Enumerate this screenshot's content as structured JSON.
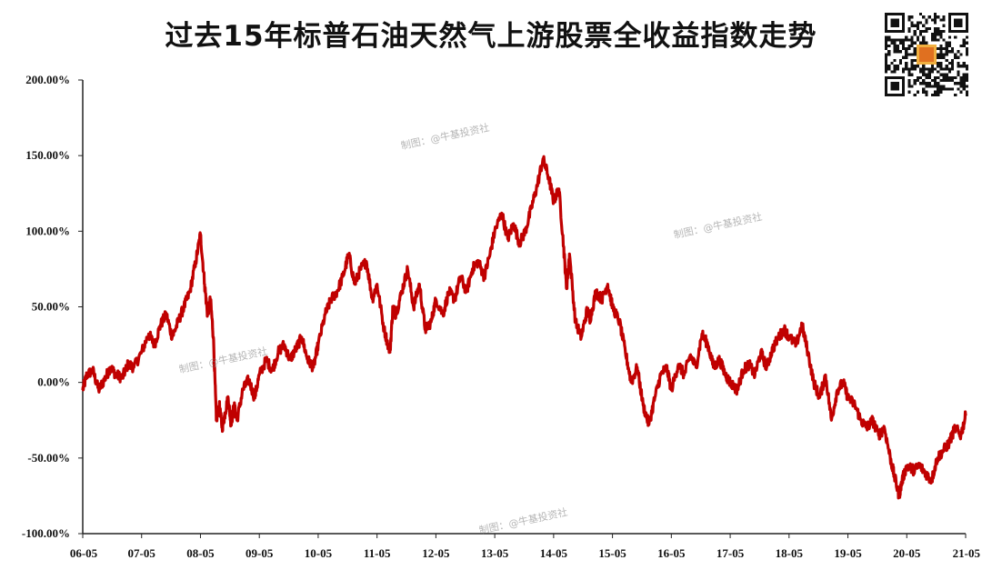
{
  "title": "过去15年标普石油天然气上游股票全收益指数走势",
  "watermark_text": "制图：@牛基投资社",
  "colors": {
    "series": "#c00000",
    "axis": "#222222",
    "text": "#111111"
  },
  "qr_icon": "qr-code-icon",
  "chart_data": {
    "type": "line",
    "title": "过去15年标普石油天然气上游股票全收益指数走势",
    "xlabel": "",
    "ylabel": "",
    "ylim": [
      -1.0,
      2.0
    ],
    "y_ticks": [
      2.0,
      1.5,
      1.0,
      0.5,
      0.0,
      -0.5,
      -1.0
    ],
    "y_tick_labels": [
      "200.00%",
      "150.00%",
      "100.00%",
      "50.00%",
      "0.00%",
      "-50.00%",
      "-100.00%"
    ],
    "x_tick_labels": [
      "06-05",
      "07-05",
      "08-05",
      "09-05",
      "10-05",
      "11-05",
      "12-05",
      "13-05",
      "14-05",
      "15-05",
      "16-05",
      "17-05",
      "18-05",
      "19-05",
      "20-05",
      "21-05"
    ],
    "xlim": [
      2006.33,
      2021.33
    ],
    "grid": false,
    "legend": "none",
    "series": [
      {
        "x": [
          2006.33,
          2006.4,
          2006.5,
          2006.6,
          2006.7,
          2006.8,
          2006.9,
          2007.0,
          2007.1,
          2007.2,
          2007.33,
          2007.45,
          2007.55,
          2007.65,
          2007.75,
          2007.85,
          2007.95,
          2008.05,
          2008.15,
          2008.25,
          2008.33,
          2008.4,
          2008.45,
          2008.5,
          2008.55,
          2008.6,
          2008.65,
          2008.7,
          2008.75,
          2008.8,
          2008.85,
          2008.9,
          2008.95,
          2009.05,
          2009.15,
          2009.25,
          2009.33,
          2009.45,
          2009.55,
          2009.65,
          2009.75,
          2009.85,
          2009.95,
          2010.05,
          2010.15,
          2010.25,
          2010.33,
          2010.45,
          2010.55,
          2010.65,
          2010.75,
          2010.85,
          2010.95,
          2011.05,
          2011.15,
          2011.25,
          2011.33,
          2011.45,
          2011.55,
          2011.6,
          2011.65,
          2011.75,
          2011.85,
          2011.95,
          2012.05,
          2012.15,
          2012.25,
          2012.33,
          2012.45,
          2012.55,
          2012.65,
          2012.75,
          2012.85,
          2012.95,
          2013.05,
          2013.15,
          2013.25,
          2013.33,
          2013.45,
          2013.55,
          2013.65,
          2013.75,
          2013.85,
          2013.95,
          2014.05,
          2014.15,
          2014.25,
          2014.33,
          2014.42,
          2014.5,
          2014.55,
          2014.6,
          2014.7,
          2014.8,
          2014.9,
          2014.95,
          2015.05,
          2015.15,
          2015.25,
          2015.33,
          2015.45,
          2015.55,
          2015.65,
          2015.75,
          2015.85,
          2015.95,
          2016.05,
          2016.15,
          2016.25,
          2016.33,
          2016.45,
          2016.55,
          2016.65,
          2016.75,
          2016.85,
          2016.95,
          2017.05,
          2017.15,
          2017.25,
          2017.33,
          2017.45,
          2017.55,
          2017.65,
          2017.75,
          2017.85,
          2017.95,
          2018.05,
          2018.15,
          2018.25,
          2018.33,
          2018.45,
          2018.55,
          2018.65,
          2018.75,
          2018.85,
          2018.95,
          2019.05,
          2019.15,
          2019.25,
          2019.33,
          2019.45,
          2019.55,
          2019.65,
          2019.75,
          2019.85,
          2019.95,
          2020.05,
          2020.12,
          2020.2,
          2020.25,
          2020.33,
          2020.45,
          2020.55,
          2020.65,
          2020.75,
          2020.85,
          2020.95,
          2021.05,
          2021.15,
          2021.25,
          2021.33
        ],
        "values": [
          -0.05,
          0.05,
          0.08,
          -0.05,
          0.02,
          0.1,
          0.05,
          0.03,
          0.12,
          0.1,
          0.2,
          0.32,
          0.25,
          0.38,
          0.45,
          0.3,
          0.4,
          0.5,
          0.6,
          0.8,
          0.98,
          0.65,
          0.45,
          0.55,
          0.3,
          -0.25,
          -0.15,
          -0.3,
          -0.2,
          -0.1,
          -0.28,
          -0.15,
          -0.25,
          -0.05,
          0.02,
          -0.1,
          0.05,
          0.15,
          0.08,
          0.2,
          0.25,
          0.15,
          0.22,
          0.3,
          0.15,
          0.1,
          0.25,
          0.45,
          0.55,
          0.6,
          0.7,
          0.85,
          0.65,
          0.75,
          0.8,
          0.55,
          0.65,
          0.35,
          0.2,
          0.5,
          0.45,
          0.6,
          0.75,
          0.5,
          0.65,
          0.35,
          0.4,
          0.55,
          0.45,
          0.6,
          0.55,
          0.7,
          0.6,
          0.75,
          0.8,
          0.7,
          0.85,
          1.0,
          1.12,
          0.95,
          1.05,
          0.92,
          1.0,
          1.15,
          1.3,
          1.48,
          1.35,
          1.2,
          1.28,
          0.9,
          0.62,
          0.85,
          0.4,
          0.3,
          0.48,
          0.42,
          0.6,
          0.55,
          0.65,
          0.5,
          0.4,
          0.2,
          0.0,
          0.1,
          -0.15,
          -0.28,
          -0.1,
          0.05,
          0.1,
          -0.05,
          0.12,
          0.05,
          0.18,
          0.1,
          0.32,
          0.25,
          0.1,
          0.15,
          0.05,
          0.0,
          -0.05,
          0.08,
          0.12,
          0.05,
          0.2,
          0.1,
          0.22,
          0.3,
          0.35,
          0.3,
          0.25,
          0.38,
          0.2,
          0.0,
          -0.1,
          0.05,
          -0.25,
          -0.05,
          0.0,
          -0.1,
          -0.15,
          -0.25,
          -0.3,
          -0.25,
          -0.35,
          -0.3,
          -0.5,
          -0.62,
          -0.75,
          -0.65,
          -0.55,
          -0.58,
          -0.55,
          -0.6,
          -0.65,
          -0.5,
          -0.45,
          -0.4,
          -0.3,
          -0.35,
          -0.22
        ]
      }
    ]
  }
}
